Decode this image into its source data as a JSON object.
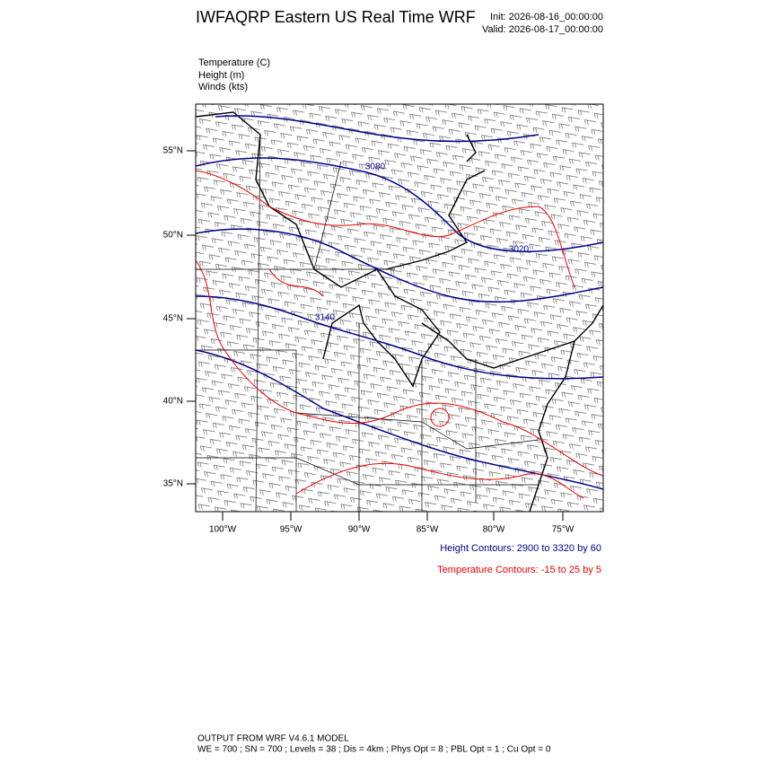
{
  "header": {
    "title": "IWFAQRP Eastern US Real Time WRF",
    "init": "Init: 2026-08-16_00:00:00",
    "valid": "Valid: 2026-08-17_00:00:00"
  },
  "fields": [
    "Temperature   (C)",
    "Height   (m)",
    "Winds   (kts)"
  ],
  "map": {
    "lat_labels": [
      "55°N",
      "50°N",
      "45°N",
      "40°N",
      "35°N"
    ],
    "lon_labels": [
      "100°W",
      "95°W",
      "90°W",
      "85°W",
      "80°W",
      "75°W"
    ],
    "contour_labels": [
      "3080",
      "3020",
      "3140"
    ]
  },
  "legend": {
    "height": "Height Contours: 2900 to 3320 by 60",
    "temperature": "Temperature Contours: -15 to 25 by 5"
  },
  "footer": {
    "line1": "OUTPUT FROM WRF V4.6.1 MODEL",
    "line2": "WE = 700 ; SN = 700 ; Levels = 38 ; Dis = 4km ; Phys Opt = 8 ; PBL Opt = 1 ; Cu Opt = 0"
  }
}
